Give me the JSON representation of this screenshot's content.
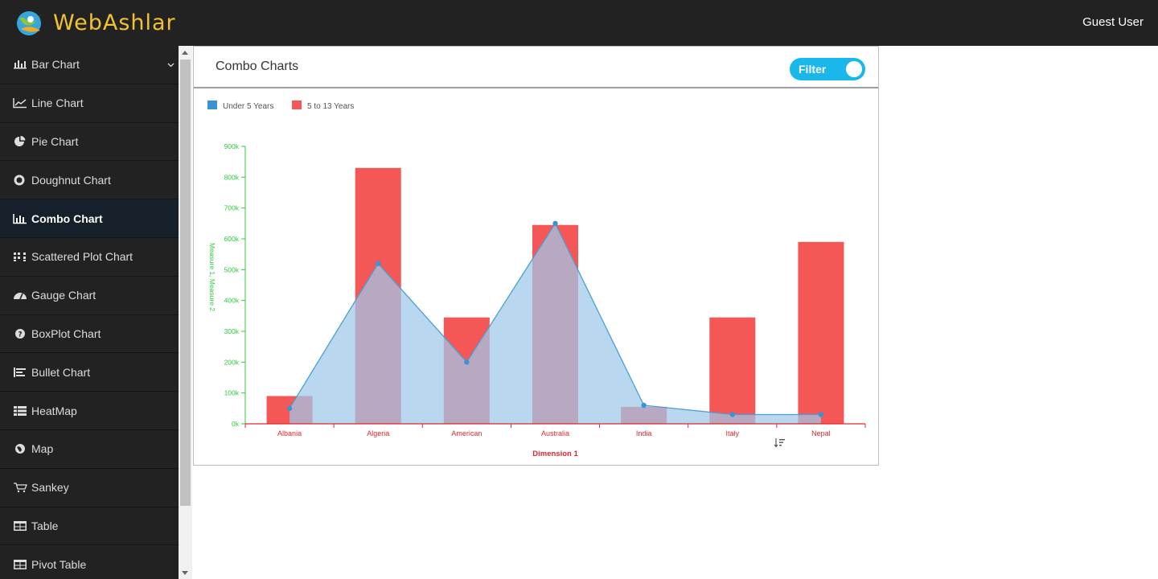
{
  "header": {
    "brand": "WebAshlar",
    "user": "Guest User"
  },
  "sidebar": {
    "items": [
      {
        "label": "Bar Chart",
        "icon": "bar-chart-icon"
      },
      {
        "label": "Line Chart",
        "icon": "line-chart-icon"
      },
      {
        "label": "Pie Chart",
        "icon": "pie-chart-icon"
      },
      {
        "label": "Doughnut Chart",
        "icon": "doughnut-icon"
      },
      {
        "label": "Combo Chart",
        "icon": "combo-chart-icon"
      },
      {
        "label": "Scattered Plot Chart",
        "icon": "scatter-icon"
      },
      {
        "label": "Gauge Chart",
        "icon": "gauge-icon"
      },
      {
        "label": "BoxPlot Chart",
        "icon": "question-circle-icon"
      },
      {
        "label": "Bullet Chart",
        "icon": "bullet-chart-icon"
      },
      {
        "label": "HeatMap",
        "icon": "list-icon"
      },
      {
        "label": "Map",
        "icon": "globe-icon"
      },
      {
        "label": "Sankey",
        "icon": "cart-icon"
      },
      {
        "label": "Table",
        "icon": "table-icon"
      },
      {
        "label": "Pivot Table",
        "icon": "table-icon"
      }
    ],
    "active_index": 4
  },
  "panel": {
    "title": "Combo Charts",
    "filter_label": "Filter"
  },
  "colors": {
    "bar": "#f55656",
    "area_fill": "#9ec9ea",
    "area_line": "#4a9fd5",
    "axis_y": "#2ecc40",
    "axis_x": "#e0282e"
  },
  "chart_data": {
    "type": "bar",
    "categories": [
      "Albania",
      "Algeria",
      "American",
      "Australia",
      "India",
      "Italy",
      "Nepal"
    ],
    "series": [
      {
        "name": "Under 5 Years",
        "type": "area",
        "values": [
          50000,
          520000,
          200000,
          650000,
          60000,
          30000,
          30000
        ]
      },
      {
        "name": "5 to 13 Years",
        "type": "bar",
        "values": [
          90000,
          830000,
          345000,
          645000,
          55000,
          345000,
          590000
        ]
      }
    ],
    "ylim": [
      0,
      900000
    ],
    "yticks": [
      "0k",
      "100k",
      "200k",
      "300k",
      "400k",
      "500k",
      "600k",
      "700k",
      "800k",
      "900k"
    ],
    "xlabel": "Dimension 1",
    "ylabel": "Measure 1, Measure 2",
    "legend": "top-left"
  }
}
